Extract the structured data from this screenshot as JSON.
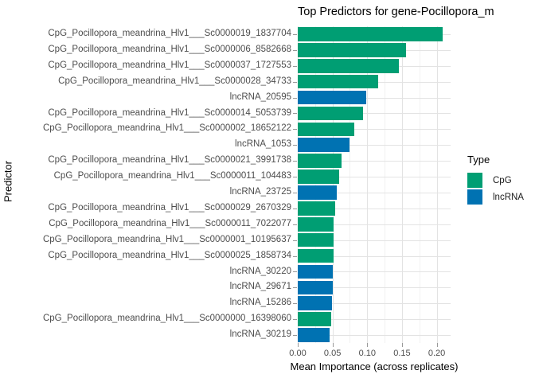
{
  "chart_data": {
    "type": "bar",
    "orientation": "horizontal",
    "title": "Top Predictors for gene-Pocillopora_m",
    "xlabel": "Mean Importance (across replicates)",
    "ylabel": "Predictor",
    "xlim": [
      0,
      0.22
    ],
    "grid": true,
    "x_ticks": [
      0,
      0.05,
      0.1,
      0.15,
      0.2
    ],
    "x_tick_labels": [
      "0.00",
      "0.05",
      "0.10",
      "0.15",
      "0.20"
    ],
    "x_minor_ticks": [
      0.025,
      0.075,
      0.125,
      0.175
    ],
    "colors": {
      "CpG": "#009E73",
      "lncRNA": "#0072B2"
    },
    "legend": {
      "title": "Type",
      "position": "right",
      "entries": [
        {
          "label": "CpG",
          "color": "#009E73"
        },
        {
          "label": "lncRNA",
          "color": "#0072B2"
        }
      ]
    },
    "bars": [
      {
        "category": "CpG_Pocillopora_meandrina_Hlv1___Sc0000019_1837704",
        "value": 0.208,
        "type": "CpG"
      },
      {
        "category": "CpG_Pocillopora_meandrina_Hlv1___Sc0000006_8582668",
        "value": 0.156,
        "type": "CpG"
      },
      {
        "category": "CpG_Pocillopora_meandrina_Hlv1___Sc0000037_1727553",
        "value": 0.145,
        "type": "CpG"
      },
      {
        "category": "CpG_Pocillopora_meandrina_Hlv1___Sc0000028_34733",
        "value": 0.116,
        "type": "CpG"
      },
      {
        "category": "lncRNA_20595",
        "value": 0.099,
        "type": "lncRNA"
      },
      {
        "category": "CpG_Pocillopora_meandrina_Hlv1___Sc0000014_5053739",
        "value": 0.094,
        "type": "CpG"
      },
      {
        "category": "CpG_Pocillopora_meandrina_Hlv1___Sc0000002_18652122",
        "value": 0.081,
        "type": "CpG"
      },
      {
        "category": "lncRNA_1053",
        "value": 0.075,
        "type": "lncRNA"
      },
      {
        "category": "CpG_Pocillopora_meandrina_Hlv1___Sc0000021_3991738",
        "value": 0.063,
        "type": "CpG"
      },
      {
        "category": "CpG_Pocillopora_meandrina_Hlv1___Sc0000011_104483",
        "value": 0.06,
        "type": "CpG"
      },
      {
        "category": "lncRNA_23725",
        "value": 0.056,
        "type": "lncRNA"
      },
      {
        "category": "CpG_Pocillopora_meandrina_Hlv1___Sc0000029_2670329",
        "value": 0.054,
        "type": "CpG"
      },
      {
        "category": "CpG_Pocillopora_meandrina_Hlv1___Sc0000011_7022077",
        "value": 0.052,
        "type": "CpG"
      },
      {
        "category": "CpG_Pocillopora_meandrina_Hlv1___Sc0000001_10195637",
        "value": 0.0515,
        "type": "CpG"
      },
      {
        "category": "CpG_Pocillopora_meandrina_Hlv1___Sc0000025_1858734",
        "value": 0.051,
        "type": "CpG"
      },
      {
        "category": "lncRNA_30220",
        "value": 0.0505,
        "type": "lncRNA"
      },
      {
        "category": "lncRNA_29671",
        "value": 0.05,
        "type": "lncRNA"
      },
      {
        "category": "lncRNA_15286",
        "value": 0.049,
        "type": "lncRNA"
      },
      {
        "category": "CpG_Pocillopora_meandrina_Hlv1___Sc0000000_16398060",
        "value": 0.048,
        "type": "CpG"
      },
      {
        "category": "lncRNA_30219",
        "value": 0.046,
        "type": "lncRNA"
      }
    ]
  }
}
